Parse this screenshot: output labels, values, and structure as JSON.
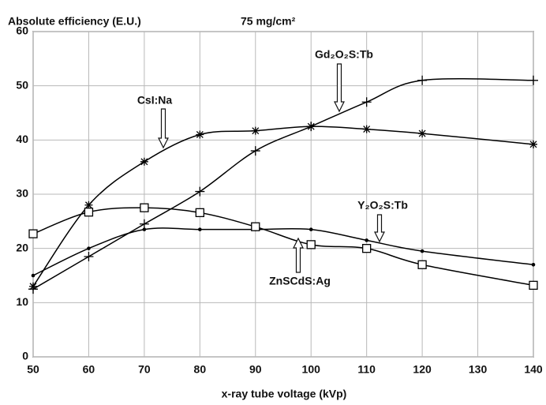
{
  "chart_data": {
    "type": "line",
    "title": "Absolute efficiency (E.U.)",
    "subtitle": "75 mg/cm²",
    "x_label": "x-ray tube voltage (kVp)",
    "x": [
      50,
      60,
      70,
      80,
      90,
      100,
      110,
      120,
      140
    ],
    "xlim": [
      50,
      140
    ],
    "xticks": [
      50,
      60,
      70,
      80,
      90,
      100,
      110,
      120,
      130,
      140
    ],
    "ylim": [
      0,
      60
    ],
    "yticks": [
      0,
      10,
      20,
      30,
      40,
      50,
      60
    ],
    "grid": true,
    "series": [
      {
        "name": "CsI:Na",
        "color": "#000000",
        "marker": "asterisk",
        "values": [
          13,
          28,
          36,
          41,
          41.7,
          42.5,
          42,
          41.2,
          39.2
        ]
      },
      {
        "name": "Gd₂O₂S:Tb",
        "color": "#000000",
        "marker": "plus",
        "values": [
          12.5,
          18.5,
          24.5,
          30.5,
          38,
          42.5,
          47,
          51,
          51
        ]
      },
      {
        "name": "Y₂O₂S:Tb",
        "color": "#000000",
        "marker": "dot",
        "values": [
          15,
          20,
          23.5,
          23.5,
          23.5,
          23.5,
          21.5,
          19.5,
          17
        ]
      },
      {
        "name": "ZnSCdS:Ag",
        "color": "#000000",
        "marker": "square",
        "values": [
          22.7,
          26.7,
          27.5,
          26.6,
          24,
          20.7,
          20,
          17,
          13.2
        ]
      }
    ]
  }
}
